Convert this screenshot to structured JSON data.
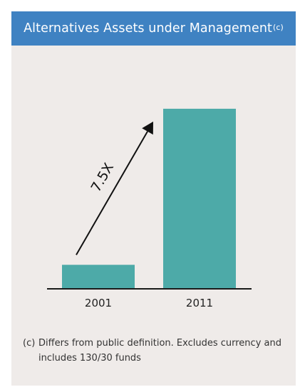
{
  "title": "Alternatives Assets under Management",
  "title_superscript": "(c)",
  "colors": {
    "header_bg": "#3f82c2",
    "panel_bg": "#efebe9",
    "bar": "#4daaa8",
    "axis": "#1a1a1a",
    "arrow": "#111111"
  },
  "chart_data": {
    "type": "bar",
    "categories": [
      "2001",
      "2011"
    ],
    "values": [
      1,
      7.5
    ],
    "annotation": "7.5X",
    "ylim": [
      0,
      8
    ],
    "grid": false
  },
  "footnote": {
    "marker": "(c)",
    "line1": "Differs from public definition. Excludes currency and",
    "line2": "includes 130/30 funds"
  }
}
